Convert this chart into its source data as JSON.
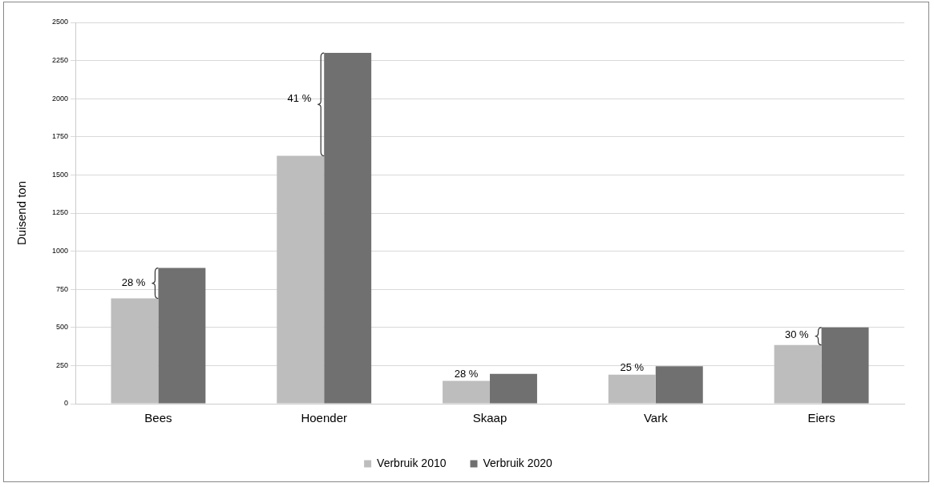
{
  "chart_data": {
    "type": "bar",
    "ylabel": "Duisend ton",
    "categories": [
      "Bees",
      "Hoender",
      "Skaap",
      "Vark",
      "Eiers"
    ],
    "series": [
      {
        "name": "Verbruik 2010",
        "color": "#bdbdbd",
        "values": [
          690,
          1625,
          150,
          190,
          385
        ]
      },
      {
        "name": "Verbruik 2020",
        "color": "#707070",
        "values": [
          890,
          2300,
          195,
          245,
          500
        ]
      }
    ],
    "ylim": [
      0,
      2500
    ],
    "yticks": [
      0,
      250,
      500,
      750,
      1000,
      1250,
      1500,
      1750,
      2000,
      2250,
      2500
    ],
    "grid": "y",
    "legend": "bottom",
    "annotations": [
      {
        "text": "28 %",
        "x": "Bees",
        "y": 790
      },
      {
        "text": "41 %",
        "x": "Hoender",
        "y": 2000
      },
      {
        "text": "28 %",
        "x": "Skaap",
        "y": 150
      },
      {
        "text": "25 %",
        "x": "Vark",
        "y": 190
      },
      {
        "text": "30 %",
        "x": "Eiers",
        "y": 450
      }
    ]
  }
}
